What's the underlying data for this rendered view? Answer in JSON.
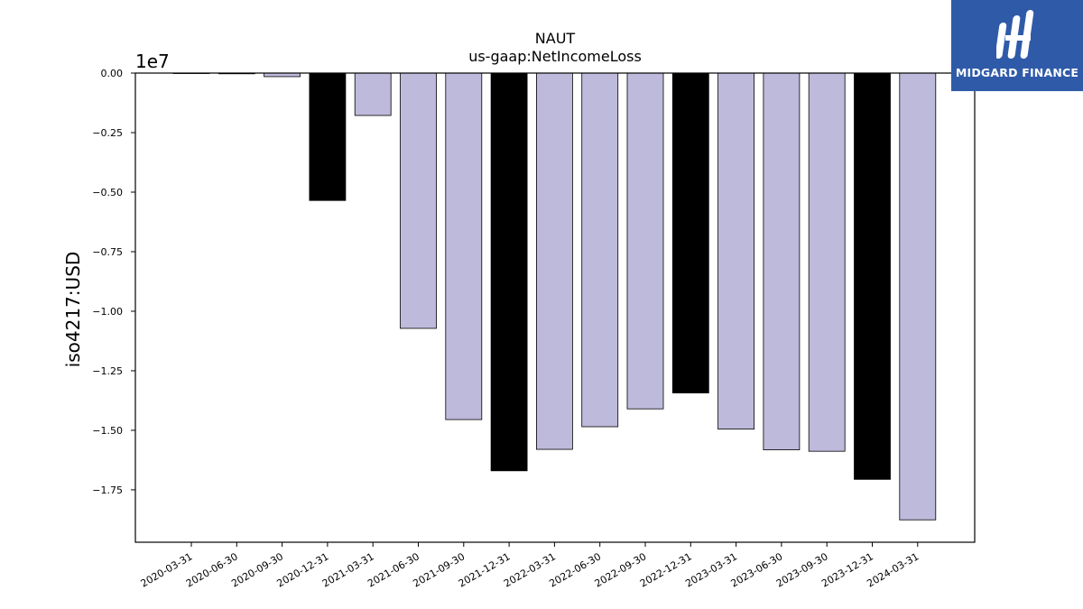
{
  "logo": {
    "name": "midgard-finance-logo",
    "text": "MIDGARD FINANCE",
    "color": "#2f5aa8"
  },
  "chart_data": {
    "type": "bar",
    "title": "NAUT",
    "subtitle": "us-gaap:NetIncomeLoss",
    "ylabel": "iso4217:USD",
    "xlabel": "",
    "offset_label": "1e7",
    "ylim": [
      -19700000.0,
      0
    ],
    "yticks": [
      0,
      -2500000,
      -5000000,
      -7500000,
      -10000000,
      -12500000,
      -15000000,
      -17500000
    ],
    "ytick_labels": [
      "0.00",
      "−0.25",
      "−0.50",
      "−0.75",
      "−1.00",
      "−1.25",
      "−1.50",
      "−1.75"
    ],
    "grid": false,
    "categories": [
      "2020-03-31",
      "2020-06-30",
      "2020-09-30",
      "2020-12-31",
      "2021-03-31",
      "2021-06-30",
      "2021-09-30",
      "2021-12-31",
      "2022-03-31",
      "2022-06-30",
      "2022-09-30",
      "2022-12-31",
      "2023-03-31",
      "2023-06-30",
      "2023-09-30",
      "2023-12-31",
      "2024-03-31"
    ],
    "values": [
      -20000,
      -30000,
      -150000,
      -5350000,
      -1780000,
      -10720000,
      -14550000,
      -16700000,
      -15800000,
      -14850000,
      -14100000,
      -13430000,
      -14950000,
      -15820000,
      -15880000,
      -17060000,
      -18760000
    ],
    "bar_colors": [
      "#bebadb",
      "#bebadb",
      "#bebadb",
      "#000000",
      "#bebadb",
      "#bebadb",
      "#bebadb",
      "#000000",
      "#bebadb",
      "#bebadb",
      "#bebadb",
      "#000000",
      "#bebadb",
      "#bebadb",
      "#bebadb",
      "#000000",
      "#bebadb"
    ]
  }
}
